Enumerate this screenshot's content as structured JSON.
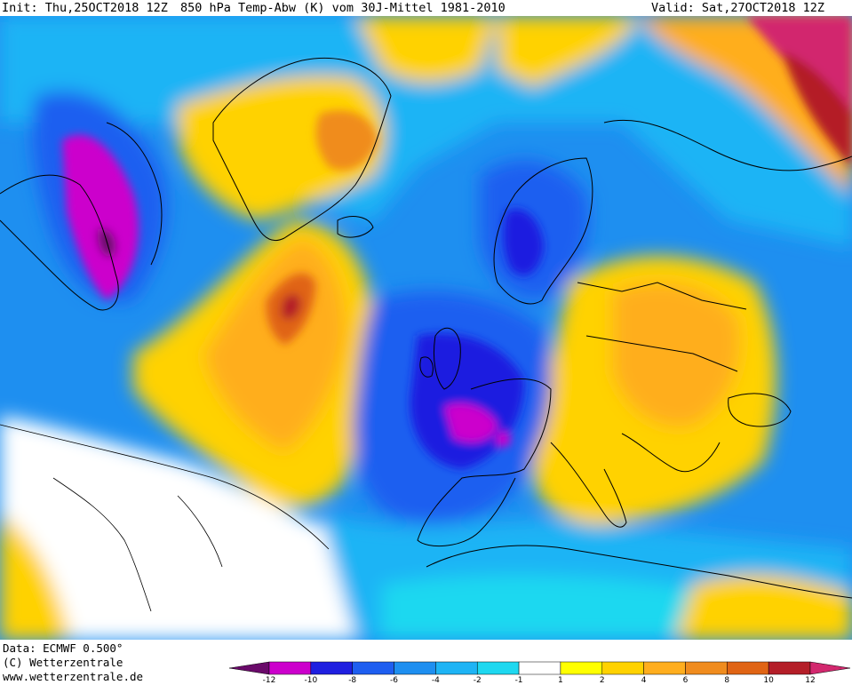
{
  "header": {
    "init": "Init: Thu,25OCT2018 12Z",
    "title": "850 hPa Temp-Abw (K) vom 30J-Mittel 1981-2010",
    "valid": "Valid: Sat,27OCT2018 12Z"
  },
  "footer": {
    "data": "Data: ECMWF  0.500°",
    "copyright": "(C) Wetterzentrale",
    "url": "www.wetterzentrale.de"
  },
  "colorbar": {
    "ticks": [
      "-12",
      "-10",
      "-8",
      "-6",
      "-4",
      "-2",
      "-1",
      "1",
      "2",
      "4",
      "6",
      "8",
      "10",
      "12"
    ],
    "colors": [
      "#6a0a6a",
      "#cc00cc",
      "#1f1fe0",
      "#1e5ef0",
      "#1e8ff0",
      "#1eb4f5",
      "#1ed8f0",
      "#ffffff",
      "#ffff00",
      "#ffd200",
      "#ffae1e",
      "#f08c1e",
      "#e06414",
      "#b41e28",
      "#d2286e"
    ]
  },
  "colors": {
    "deep_neg": "#6a0a6a",
    "magenta": "#cc00cc",
    "blue_dark": "#1f1fe0",
    "blue": "#1e5ef0",
    "blue_mid": "#1e8ff0",
    "cyan_blue": "#1eb4f5",
    "cyan": "#1ed8f0",
    "neutral": "#ffffff",
    "yellow": "#ffff00",
    "yellow_orange": "#ffd200",
    "orange_light": "#ffae1e",
    "orange": "#f08c1e",
    "orange_dark": "#e06414",
    "red": "#b41e28",
    "pink_red": "#d2286e"
  }
}
